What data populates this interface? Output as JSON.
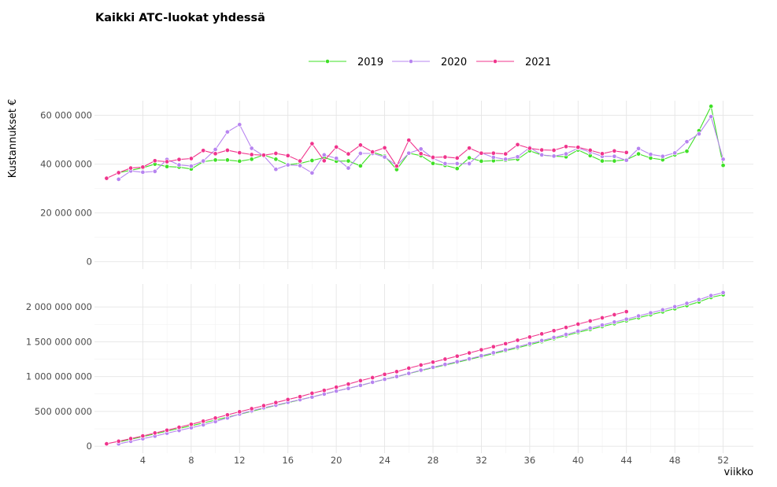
{
  "chart_data": {
    "type": "line",
    "title": "Kaikki ATC-luokat yhdessä",
    "xlabel": "viikko",
    "ylabel": "Kustannukset €",
    "x_ticks": [
      4,
      8,
      12,
      16,
      20,
      24,
      28,
      32,
      36,
      40,
      44,
      48,
      52
    ],
    "legend_position": "top",
    "grid": true,
    "colors": {
      "2019": "#3fe026",
      "2020": "#b784f0",
      "2021": "#f0348c"
    },
    "panels": [
      {
        "name": "weekly",
        "ylim": [
          -3000000,
          66000000
        ],
        "y_ticks": [
          0,
          20000000,
          40000000,
          60000000
        ],
        "y_tick_labels": [
          "0",
          "20 000 000",
          "40 000 000",
          "60 000 000"
        ],
        "series": [
          {
            "name": "2019",
            "color": "#3fe026",
            "x": [
              2,
              3,
              4,
              5,
              6,
              7,
              8,
              9,
              10,
              11,
              12,
              13,
              14,
              15,
              16,
              17,
              18,
              19,
              20,
              21,
              22,
              23,
              24,
              25,
              26,
              27,
              28,
              29,
              30,
              31,
              32,
              33,
              34,
              35,
              36,
              37,
              38,
              39,
              40,
              41,
              42,
              43,
              44,
              45,
              46,
              47,
              48,
              49,
              50,
              51,
              52
            ],
            "values": [
              36500000,
              37500000,
              38500000,
              40000000,
              39000000,
              38800000,
              38000000,
              41000000,
              41700000,
              41700000,
              41200000,
              42000000,
              43800000,
              42000000,
              39800000,
              40300000,
              41500000,
              42700000,
              41200000,
              41300000,
              39300000,
              44900000,
              43300000,
              37800000,
              44500000,
              43500000,
              40300000,
              39500000,
              38200000,
              42600000,
              41200000,
              41400000,
              41600000,
              42000000,
              45500000,
              43700000,
              43300000,
              43000000,
              45800000,
              43500000,
              41300000,
              41300000,
              41800000,
              44200000,
              42500000,
              41800000,
              43800000,
              45300000,
              53700000,
              63700000,
              39500000
            ]
          },
          {
            "name": "2020",
            "color": "#b784f0",
            "x": [
              2,
              3,
              4,
              5,
              6,
              7,
              8,
              9,
              10,
              11,
              12,
              13,
              14,
              15,
              16,
              17,
              18,
              19,
              20,
              21,
              22,
              23,
              24,
              25,
              26,
              27,
              28,
              29,
              30,
              31,
              32,
              33,
              34,
              35,
              36,
              37,
              38,
              39,
              40,
              41,
              42,
              43,
              44,
              45,
              46,
              47,
              48,
              49,
              50,
              51,
              52
            ],
            "values": [
              33800000,
              37200000,
              36700000,
              37000000,
              41900000,
              39700000,
              39200000,
              41300000,
              46000000,
              53200000,
              56200000,
              46500000,
              43400000,
              37900000,
              39700000,
              39400000,
              36400000,
              43800000,
              42400000,
              38400000,
              44400000,
              44400000,
              42900000,
              39400000,
              44500000,
              46200000,
              42400000,
              40200000,
              40200000,
              40200000,
              44600000,
              42800000,
              42000000,
              43000000,
              46800000,
              43800000,
              43300000,
              44200000,
              46600000,
              44900000,
              43200000,
              43200000,
              41600000,
              46400000,
              44000000,
              43200000,
              44600000,
              49200000,
              52400000,
              59500000,
              42000000
            ]
          },
          {
            "name": "2021",
            "color": "#f0348c",
            "x": [
              1,
              2,
              3,
              4,
              5,
              6,
              7,
              8,
              9,
              10,
              11,
              12,
              13,
              14,
              15,
              16,
              17,
              18,
              19,
              20,
              21,
              22,
              23,
              24,
              25,
              26,
              27,
              28,
              29,
              30,
              31,
              32,
              33,
              34,
              35,
              36,
              37,
              38,
              39,
              40,
              41,
              42,
              43,
              44
            ],
            "values": [
              34200000,
              36500000,
              38400000,
              38800000,
              41400000,
              41000000,
              41900000,
              42300000,
              45600000,
              44300000,
              45700000,
              44700000,
              43900000,
              43700000,
              44400000,
              43500000,
              41300000,
              48400000,
              41400000,
              47000000,
              44200000,
              47800000,
              45000000,
              46700000,
              39200000,
              49800000,
              44300000,
              42800000,
              42900000,
              42500000,
              46600000,
              44500000,
              44500000,
              44200000,
              48000000,
              46500000,
              45800000,
              45700000,
              47200000,
              46900000,
              45700000,
              44300000,
              45400000,
              44800000
            ]
          }
        ]
      },
      {
        "name": "cumulative",
        "ylim": [
          -100000000,
          2330000000
        ],
        "y_ticks": [
          0,
          500000000,
          1000000000,
          1500000000,
          2000000000
        ],
        "y_tick_labels": [
          "0",
          "500 000 000",
          "1 000 000 000",
          "1 500 000 000",
          "2 000 000 000"
        ],
        "series": [
          {
            "name": "2019",
            "color": "#3fe026",
            "x": [
              2,
              3,
              4,
              5,
              6,
              7,
              8,
              9,
              10,
              11,
              12,
              13,
              14,
              15,
              16,
              17,
              18,
              19,
              20,
              21,
              22,
              23,
              24,
              25,
              26,
              27,
              28,
              29,
              30,
              31,
              32,
              33,
              34,
              35,
              36,
              37,
              38,
              39,
              40,
              41,
              42,
              43,
              44,
              45,
              46,
              47,
              48,
              49,
              50,
              51,
              52
            ],
            "values": [
              61000000,
              98500000,
              137000000,
              177000000,
              216000000,
              254800000,
              292800000,
              333800000,
              375500000,
              417200000,
              458400000,
              500400000,
              544200000,
              586200000,
              626000000,
              666300000,
              707800000,
              750500000,
              791700000,
              833000000,
              872300000,
              917200000,
              960500000,
              998300000,
              1042800000,
              1086300000,
              1126600000,
              1166100000,
              1204300000,
              1246900000,
              1288100000,
              1329500000,
              1371100000,
              1413100000,
              1458600000,
              1502300000,
              1545600000,
              1588600000,
              1634400000,
              1677900000,
              1719200000,
              1760500000,
              1802300000,
              1846500000,
              1889000000,
              1930800000,
              1974600000,
              2019900000,
              2073600000,
              2137300000,
              2176800000
            ]
          },
          {
            "name": "2020",
            "color": "#b784f0",
            "x": [
              2,
              3,
              4,
              5,
              6,
              7,
              8,
              9,
              10,
              11,
              12,
              13,
              14,
              15,
              16,
              17,
              18,
              19,
              20,
              21,
              22,
              23,
              24,
              25,
              26,
              27,
              28,
              29,
              30,
              31,
              32,
              33,
              34,
              35,
              36,
              37,
              38,
              39,
              40,
              41,
              42,
              43,
              44,
              45,
              46,
              47,
              48,
              49,
              50,
              51,
              52
            ],
            "values": [
              33800000,
              71000000,
              107700000,
              144700000,
              186600000,
              226300000,
              265500000,
              306800000,
              352800000,
              406000000,
              462200000,
              508700000,
              552100000,
              590000000,
              629700000,
              669100000,
              705500000,
              749300000,
              791700000,
              830100000,
              874500000,
              918900000,
              961800000,
              1001200000,
              1045700000,
              1091900000,
              1134300000,
              1174500000,
              1214700000,
              1254900000,
              1299500000,
              1342300000,
              1384300000,
              1427300000,
              1474100000,
              1517900000,
              1561200000,
              1605400000,
              1652000000,
              1696900000,
              1740100000,
              1783300000,
              1824900000,
              1871300000,
              1915300000,
              1958500000,
              2003100000,
              2052300000,
              2104700000,
              2164200000,
              2206200000
            ]
          },
          {
            "name": "2021",
            "color": "#f0348c",
            "x": [
              1,
              2,
              3,
              4,
              5,
              6,
              7,
              8,
              9,
              10,
              11,
              12,
              13,
              14,
              15,
              16,
              17,
              18,
              19,
              20,
              21,
              22,
              23,
              24,
              25,
              26,
              27,
              28,
              29,
              30,
              31,
              32,
              33,
              34,
              35,
              36,
              37,
              38,
              39,
              40,
              41,
              42,
              43,
              44
            ],
            "values": [
              34200000,
              70700000,
              109100000,
              147900000,
              189300000,
              230300000,
              272200000,
              314500000,
              360100000,
              404400000,
              450100000,
              494800000,
              538700000,
              582400000,
              626800000,
              670300000,
              711600000,
              760000000,
              801400000,
              848400000,
              892600000,
              940400000,
              985400000,
              1032100000,
              1071300000,
              1121100000,
              1165400000,
              1208200000,
              1251100000,
              1293600000,
              1340200000,
              1384700000,
              1429200000,
              1473400000,
              1521400000,
              1567900000,
              1613700000,
              1659400000,
              1706600000,
              1753500000,
              1799200000,
              1843500000,
              1888900000,
              1933700000
            ]
          }
        ]
      }
    ]
  }
}
